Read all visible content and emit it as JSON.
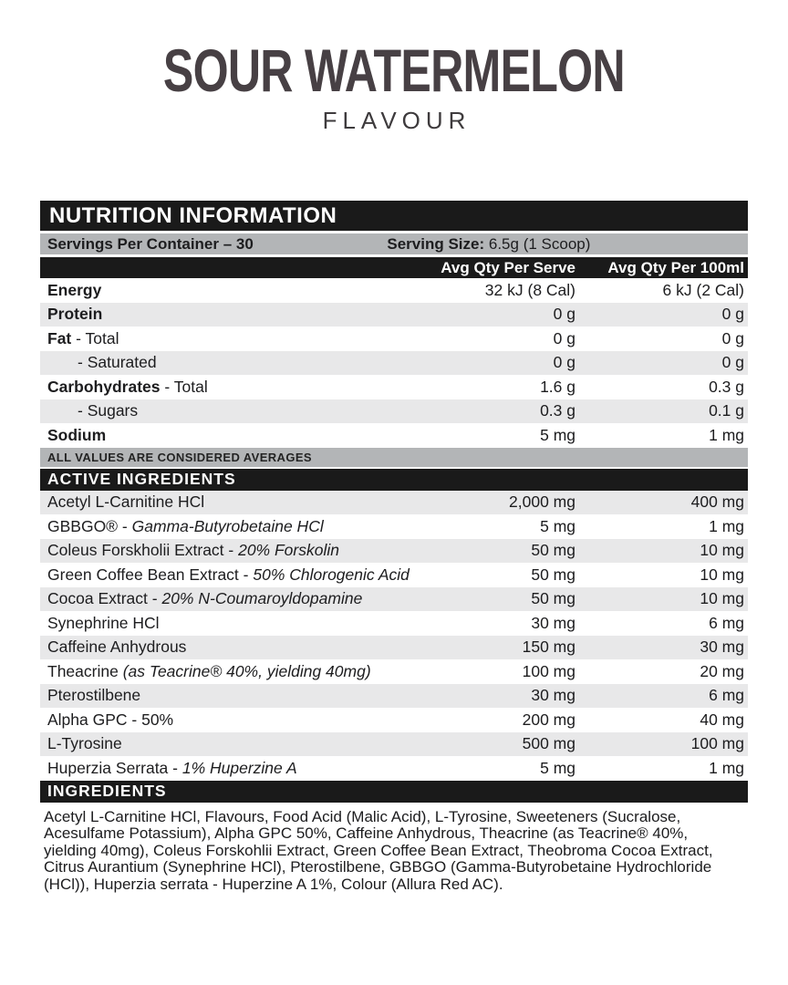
{
  "colors": {
    "bar_black": "#1a1a1a",
    "bar_gray": "#b3b5b7",
    "stripe": "#e8e8e9",
    "title_ink": "#474044"
  },
  "header": {
    "title": "SOUR WATERMELON",
    "subtitle": "FLAVOUR"
  },
  "panel": {
    "title": "NUTRITION INFORMATION",
    "servings_label": "Servings Per Container – 30",
    "serving_size_label": "Serving Size:",
    "serving_size_value": " 6.5g (1 Scoop)",
    "col_serve": "Avg Qty Per Serve",
    "col_100ml": "Avg Qty Per 100ml",
    "note": "ALL VALUES ARE CONSIDERED AVERAGES",
    "active_title": "ACTIVE INGREDIENTS",
    "ingredients_title": "INGREDIENTS",
    "ingredients_text": "Acetyl L-Carnitine HCl, Flavours, Food Acid (Malic Acid), L-Tyrosine, Sweeteners (Sucralose, Acesulfame Potassium), Alpha GPC 50%, Caffeine Anhydrous, Theacrine (as Teacrine® 40%, yielding 40mg), Coleus Forskohlii Extract, Green Coffee Bean Extract, Theobroma Cocoa Extract, Citrus Aurantium (Synephrine HCl), Pterostilbene, GBBGO (Gamma-Butyrobetaine Hydrochloride (HCl)), Huperzia serrata - Huperzine A 1%, Colour (Allura Red AC)."
  },
  "nutrition_rows": [
    {
      "bold": "Energy",
      "plain": "",
      "italic": "",
      "serve": "32 kJ (8 Cal)",
      "per100": "6 kJ (2 Cal)",
      "indent": false
    },
    {
      "bold": "Protein",
      "plain": "",
      "italic": "",
      "serve": "0 g",
      "per100": "0 g",
      "indent": false
    },
    {
      "bold": "Fat",
      "plain": "  - Total",
      "italic": "",
      "serve": "0 g",
      "per100": "0 g",
      "indent": false
    },
    {
      "bold": "",
      "plain": "- Saturated",
      "italic": "",
      "serve": "0 g",
      "per100": "0 g",
      "indent": true
    },
    {
      "bold": "Carbohydrates",
      "plain": " - Total",
      "italic": "",
      "serve": "1.6 g",
      "per100": "0.3 g",
      "indent": false
    },
    {
      "bold": "",
      "plain": "- Sugars",
      "italic": "",
      "serve": "0.3 g",
      "per100": "0.1 g",
      "indent": true
    },
    {
      "bold": "Sodium",
      "plain": "",
      "italic": "",
      "serve": "5 mg",
      "per100": "1 mg",
      "indent": false
    }
  ],
  "active_rows": [
    {
      "bold": "",
      "plain": "Acetyl L-Carnitine HCl",
      "italic": "",
      "serve": "2,000 mg",
      "per100": "400 mg",
      "indent": false
    },
    {
      "bold": "",
      "plain": "GBBGO® - ",
      "italic": "Gamma-Butyrobetaine HCl",
      "serve": "5 mg",
      "per100": "1 mg",
      "indent": false
    },
    {
      "bold": "",
      "plain": "Coleus Forskholii Extract - ",
      "italic": "20% Forskolin",
      "serve": "50 mg",
      "per100": "10 mg",
      "indent": false
    },
    {
      "bold": "",
      "plain": "Green Coffee Bean Extract - ",
      "italic": "50% Chlorogenic Acid",
      "serve": "50 mg",
      "per100": "10 mg",
      "indent": false
    },
    {
      "bold": "",
      "plain": "Cocoa Extract - ",
      "italic": "20% N-Coumaroyldopamine",
      "serve": "50 mg",
      "per100": "10 mg",
      "indent": false
    },
    {
      "bold": "",
      "plain": "Synephrine HCl",
      "italic": "",
      "serve": "30 mg",
      "per100": "6 mg",
      "indent": false
    },
    {
      "bold": "",
      "plain": "Caffeine Anhydrous",
      "italic": "",
      "serve": "150 mg",
      "per100": "30 mg",
      "indent": false
    },
    {
      "bold": "",
      "plain": "Theacrine ",
      "italic": "(as Teacrine® 40%, yielding 40mg)",
      "serve": "100 mg",
      "per100": "20 mg",
      "indent": false
    },
    {
      "bold": "",
      "plain": "Pterostilbene",
      "italic": "",
      "serve": "30 mg",
      "per100": "6 mg",
      "indent": false
    },
    {
      "bold": "",
      "plain": "Alpha GPC - 50%",
      "italic": "",
      "serve": "200 mg",
      "per100": "40 mg",
      "indent": false
    },
    {
      "bold": "",
      "plain": "L-Tyrosine",
      "italic": "",
      "serve": "500 mg",
      "per100": "100 mg",
      "indent": false
    },
    {
      "bold": "",
      "plain": "Huperzia Serrata - ",
      "italic": "1% Huperzine A",
      "serve": "5 mg",
      "per100": "1 mg",
      "indent": false
    }
  ]
}
